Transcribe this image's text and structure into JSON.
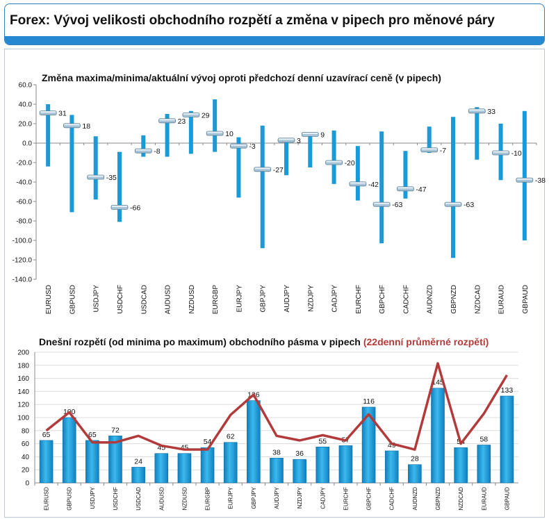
{
  "header": {
    "title": "Forex: Vývoj velikosti obchodního rozpětí a změna v pipech pro měnové páry"
  },
  "colors": {
    "accent": "#2788d2",
    "bar": "#1a9ad6",
    "avg_line": "#b23a3a"
  },
  "chart_data": [
    {
      "type": "bar",
      "title": "Změna maxima/minima/aktuální vývoj oproti předchozí denní uzavírací ceně (v pipech)",
      "categories": [
        "EURUSD",
        "GBPUSD",
        "USDJPY",
        "USDCHF",
        "USDCAD",
        "AUDUSD",
        "NZDUSD",
        "EURGBP",
        "EURJPY",
        "GBPJPY",
        "AUDJPY",
        "NZDJPY",
        "CADJPY",
        "EURCHF",
        "GBPCHF",
        "CADCHF",
        "AUDNZD",
        "GBPNZD",
        "NZDCAD",
        "EURAUD",
        "GBPAUD"
      ],
      "series": [
        {
          "name": "",
          "values_high": [
            40,
            29,
            7,
            -9,
            8,
            30,
            33,
            45,
            6,
            18,
            3,
            11,
            13,
            -3,
            12,
            -8,
            17,
            27,
            37,
            20,
            33
          ]
        },
        {
          "name": "",
          "values_low": [
            -24,
            -71,
            -58,
            -81,
            -14,
            -14,
            -11,
            -9,
            -56,
            -108,
            -33,
            -25,
            -42,
            -59,
            -103,
            -57,
            -10,
            -118,
            -17,
            -38,
            -100
          ]
        },
        {
          "name": "",
          "values_current": [
            31,
            18,
            -35,
            -66,
            -8,
            23,
            29,
            10,
            -3,
            -27,
            3,
            9,
            -20,
            -42,
            -63,
            -47,
            -7,
            -63,
            33,
            -10,
            -38
          ]
        }
      ],
      "data_labels": [
        "31",
        "18",
        "-35",
        "-66",
        "-8",
        "23",
        "29",
        "10",
        "-3",
        "-27",
        "3",
        "9",
        "-20",
        "-42",
        "-63",
        "-47",
        "-7",
        "-63",
        "33",
        "-10",
        "-38"
      ],
      "ylim": [
        -140,
        60
      ],
      "yticks": [
        "60.0",
        "40.0",
        "20.0",
        "0.0",
        "-20.0",
        "-40.0",
        "-60.0",
        "-80.0",
        "-100.0",
        "-120.0",
        "-140.0"
      ],
      "grid": false
    },
    {
      "type": "bar",
      "title": "Dnešní rozpětí (od minima po maximum) obchodního pásma v pipech",
      "title_highlight": "(22denní průměrné rozpětí)",
      "categories": [
        "EURUSD",
        "GBPUSD",
        "USDJPY",
        "USDCHF",
        "USDCAD",
        "AUDUSD",
        "NZDUSD",
        "EURGBP",
        "EURJPY",
        "GBPJPY",
        "AUDJPY",
        "NZDJPY",
        "CADJPY",
        "EURCHF",
        "GBPCHF",
        "CADCHF",
        "AUDNZD",
        "GBPNZD",
        "NZDCAD",
        "EURAUD",
        "GBPAUD"
      ],
      "series": [
        {
          "name": "",
          "values": [
            65,
            100,
            65,
            72,
            24,
            45,
            45,
            54,
            62,
            126,
            38,
            36,
            55,
            57,
            116,
            49,
            28,
            145,
            54,
            58,
            133
          ]
        },
        {
          "name": "",
          "values": [
            80,
            108,
            62,
            62,
            72,
            57,
            51,
            51,
            104,
            135,
            72,
            65,
            73,
            65,
            105,
            60,
            51,
            183,
            60,
            106,
            165
          ]
        }
      ],
      "data_labels": [
        "65",
        "100",
        "65",
        "72",
        "24",
        "45",
        "45",
        "54",
        "62",
        "126",
        "38",
        "36",
        "55",
        "57",
        "116",
        "49",
        "28",
        "145",
        "54",
        "58",
        "133"
      ],
      "ylim": [
        0,
        200
      ],
      "yticks": [
        "200",
        "180",
        "160",
        "140",
        "120",
        "100",
        "80",
        "60",
        "40",
        "20",
        "0"
      ],
      "grid": false
    }
  ]
}
